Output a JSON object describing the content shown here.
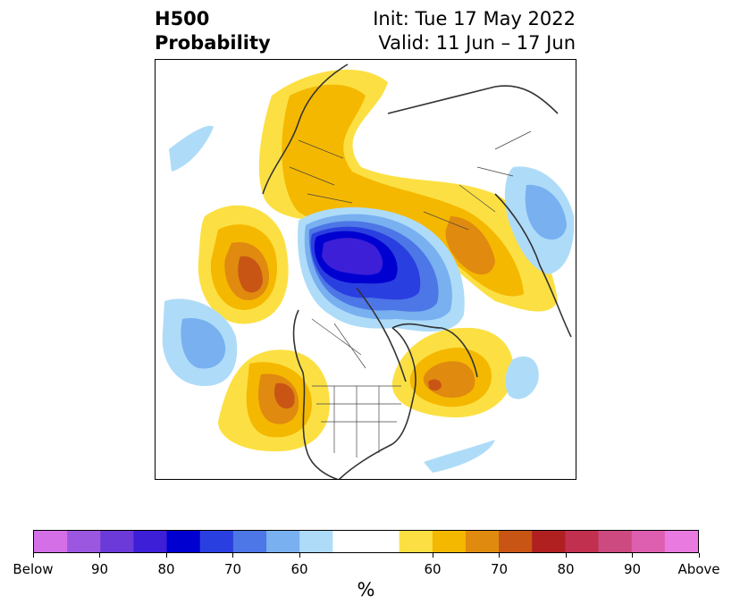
{
  "header": {
    "title_line1": "H500",
    "title_line2": "Probability",
    "init_text": "Init: Tue 17 May 2022",
    "valid_text": "Valid: 11 Jun – 17 Jun"
  },
  "colorbar": {
    "unit": "%",
    "colors": [
      "#d46fe8",
      "#9b57e0",
      "#6b3ad9",
      "#3c1fd6",
      "#0000d0",
      "#2a3fe0",
      "#4d76e6",
      "#78b0f0",
      "#aedcf8",
      "#ffffff",
      "#ffffff",
      "#fce043",
      "#f5b800",
      "#e08a10",
      "#c95515",
      "#b02020",
      "#c23050",
      "#cc4a80",
      "#de5fb0",
      "#e87ae0"
    ],
    "tick_labels": [
      "Below",
      "90",
      "80",
      "70",
      "60",
      "60",
      "70",
      "80",
      "90",
      "Above"
    ]
  },
  "map": {
    "projection": "north-polar-stereographic",
    "colors": {
      "blue_light": "#aedcf8",
      "blue_mid": "#78b0f0",
      "blue_mid2": "#4d76e6",
      "blue_deep": "#2a3fe0",
      "blue_core": "#0000d0",
      "blue_purple": "#3c1fd6",
      "yellow": "#fce043",
      "gold": "#f5b800",
      "orange": "#e08a10",
      "red_orange": "#c95515",
      "coastline": "#333333"
    }
  }
}
